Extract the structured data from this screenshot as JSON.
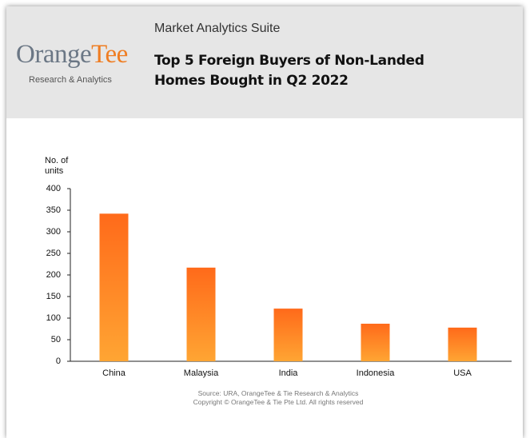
{
  "header": {
    "logo": [
      "Orange",
      "Tee"
    ],
    "logo_subtitle": "Research & Analytics",
    "suite": "Market Analytics Suite"
  },
  "chart_data": {
    "type": "bar",
    "title": "Top 5 Foreign Buyers of Non-Landed Homes Bought in Q2 2022",
    "y_label": "No. of units",
    "categories": [
      "China",
      "Malaysia",
      "India",
      "Indonesia",
      "USA"
    ],
    "values": [
      342,
      217,
      122,
      87,
      78
    ],
    "color": "#ff6a1a",
    "ylim": [
      0,
      400
    ],
    "yticks": [
      0,
      50,
      100,
      150,
      200,
      250,
      300,
      350,
      400
    ],
    "grid": false
  },
  "footer": {
    "source": "Source: URA, OrangeTee & Tie Research & Analytics",
    "copyright": "Copyright © OrangeTee & Tie Pte Ltd. All rights reserved"
  }
}
